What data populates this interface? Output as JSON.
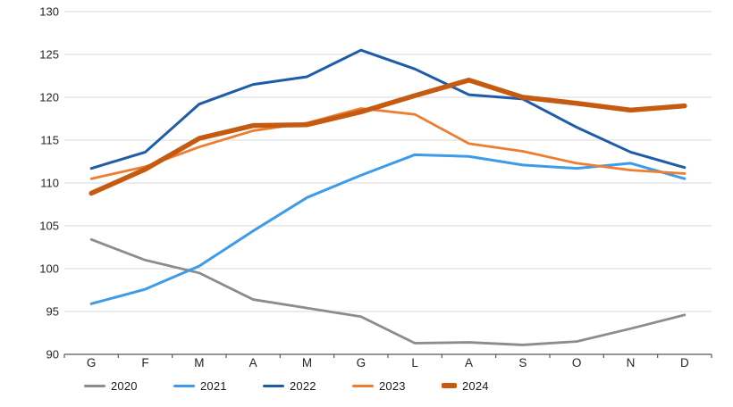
{
  "chart_data": {
    "type": "line",
    "title": "",
    "xlabel": "",
    "ylabel": "",
    "categories": [
      "G",
      "F",
      "M",
      "A",
      "M",
      "G",
      "L",
      "A",
      "S",
      "O",
      "N",
      "D"
    ],
    "series": [
      {
        "name": "2020",
        "color": "#8C8C8C",
        "line_width": 2.8,
        "values": [
          103.4,
          101.0,
          99.5,
          96.4,
          95.4,
          94.4,
          91.3,
          91.4,
          91.1,
          91.5,
          93.0,
          94.6
        ]
      },
      {
        "name": "2021",
        "color": "#3E9BE9",
        "line_width": 3,
        "values": [
          95.9,
          97.6,
          100.3,
          104.4,
          108.3,
          110.9,
          113.3,
          113.1,
          112.1,
          111.7,
          112.3,
          110.5
        ]
      },
      {
        "name": "2022",
        "color": "#1F5CA8",
        "line_width": 3,
        "values": [
          111.7,
          113.6,
          119.2,
          121.5,
          122.4,
          125.5,
          123.3,
          120.3,
          119.8,
          116.5,
          113.6,
          111.8
        ]
      },
      {
        "name": "2023",
        "color": "#ED7D31",
        "line_width": 2.8,
        "values": [
          110.5,
          111.9,
          114.2,
          116.1,
          117.0,
          118.7,
          118.0,
          114.6,
          113.7,
          112.3,
          111.5,
          111.1
        ]
      },
      {
        "name": "2024",
        "color": "#C55A11",
        "line_width": 5.5,
        "values": [
          108.8,
          111.6,
          115.2,
          116.7,
          116.8,
          118.3,
          120.2,
          122.0,
          120.0,
          119.3,
          118.5,
          119.0
        ]
      }
    ],
    "ylim": [
      90,
      130
    ],
    "ytick_step": 5,
    "ytick_labels": [
      "90",
      "95",
      "100",
      "105",
      "110",
      "115",
      "120",
      "125",
      "130"
    ],
    "grid": true,
    "legend_position": "bottom",
    "grid_color": "#D9D9D9",
    "axis_color": "#595959",
    "label_color": "#262626"
  }
}
